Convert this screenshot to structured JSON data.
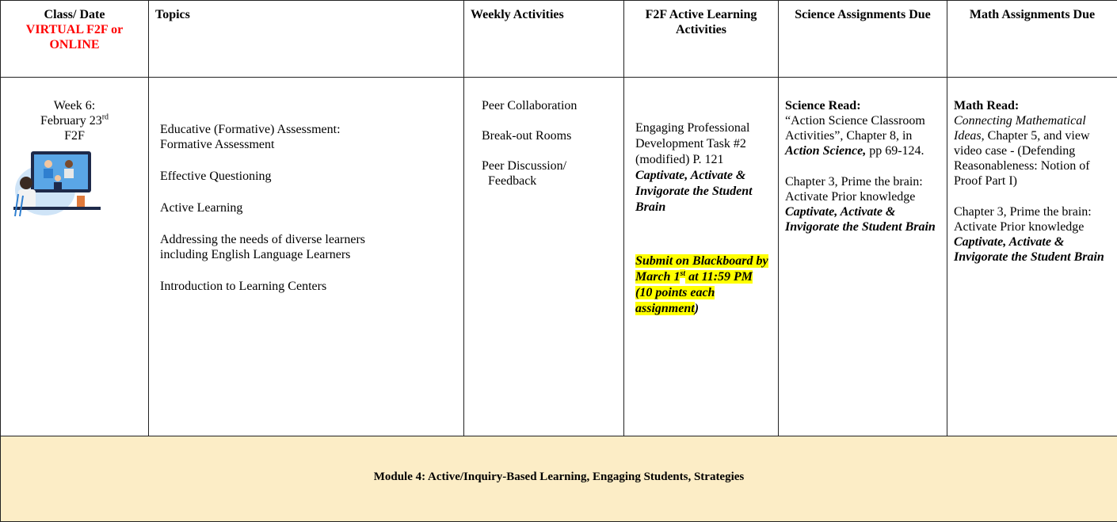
{
  "header": {
    "cells": [
      {
        "line1": "Class/ Date",
        "line2": "VIRTUAL F2F or ONLINE"
      },
      {
        "text": "Topics"
      },
      {
        "text": "Weekly Activities"
      },
      {
        "text": "F2F Active Learning Activities"
      },
      {
        "text": "Science Assignments Due"
      },
      {
        "text": "Math Assignments Due"
      }
    ]
  },
  "row": {
    "class_date": {
      "week": "Week 6:",
      "date": "February 23",
      "date_suffix": "rd",
      "mode": "F2F"
    },
    "topics": [
      {
        "lines": [
          "Educative (Formative) Assessment:",
          "Formative Assessment"
        ]
      },
      {
        "lines": [
          "Effective Questioning"
        ]
      },
      {
        "lines": [
          "Active Learning"
        ]
      },
      {
        "lines": [
          "Addressing the needs of diverse learners",
          "including English Language Learners"
        ]
      },
      {
        "lines": [
          "Introduction to Learning Centers"
        ]
      }
    ],
    "weekly_activities": [
      {
        "lines": [
          "Peer Collaboration"
        ]
      },
      {
        "lines": [
          "Break-out Rooms"
        ]
      },
      {
        "lines": [
          "Peer Discussion/",
          "Feedback"
        ]
      }
    ],
    "f2f": {
      "task": "Engaging Professional Development Task #2 (modified) P. 121",
      "book": "Captivate, Activate & Invigorate the Student Brain",
      "submit": "Submit on Blackboard by March 1",
      "submit_suffix": "st",
      "submit_rest": " at 11:59 PM (10 points each assignment",
      "submit_close": ")"
    },
    "science": {
      "label": "Science Read:",
      "reading": "“Action Science Classroom Activities”, Chapter 8, in ",
      "reading_book": "Action Science,",
      "reading_pages": " pp 69-124.",
      "chapter": "Chapter 3, Prime the brain: Activate Prior knowledge ",
      "chapter_book": "Captivate, Activate & Invigorate the Student Brain"
    },
    "math": {
      "label": "Math Read:",
      "reading_book": "Connecting Mathematical Ideas",
      "reading": ", Chapter 5, and view video case - (Defending Reasonableness: Notion of Proof Part I)",
      "chapter": "Chapter 3, Prime the brain: Activate Prior knowledge ",
      "chapter_book": "Captivate, Activate & Invigorate the Student Brain"
    }
  },
  "footer": {
    "text": "Module 4: Active/Inquiry-Based Learning, Engaging Students, Strategies"
  }
}
